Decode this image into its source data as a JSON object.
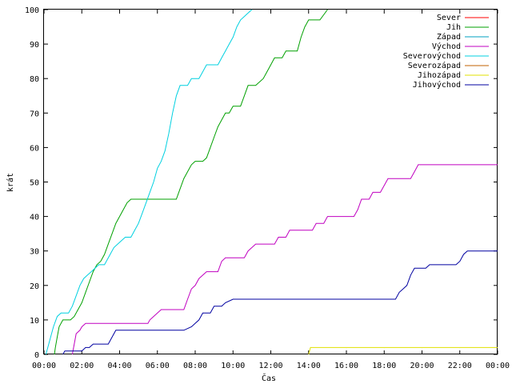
{
  "chart_data": {
    "type": "line",
    "xlabel": "Čas",
    "ylabel": "krát",
    "xlim": [
      0,
      24
    ],
    "ylim": [
      0,
      100
    ],
    "x_ticks": [
      "00:00",
      "02:00",
      "04:00",
      "06:00",
      "08:00",
      "10:00",
      "12:00",
      "14:00",
      "16:00",
      "18:00",
      "20:00",
      "22:00",
      "00:00"
    ],
    "y_ticks": [
      0,
      10,
      20,
      30,
      40,
      50,
      60,
      70,
      80,
      90,
      100
    ],
    "grid": false,
    "legend_position": "top-right",
    "series": [
      {
        "name": "Sever",
        "color": "#ff0000",
        "points": []
      },
      {
        "name": "Jih",
        "color": "#00a000",
        "points": [
          [
            0.55,
            0
          ],
          [
            0.6,
            2
          ],
          [
            0.7,
            5
          ],
          [
            0.8,
            8
          ],
          [
            1.0,
            10
          ],
          [
            1.2,
            10
          ],
          [
            1.4,
            10
          ],
          [
            1.6,
            11
          ],
          [
            1.8,
            13
          ],
          [
            2.0,
            15
          ],
          [
            2.2,
            18
          ],
          [
            2.4,
            21
          ],
          [
            2.6,
            24
          ],
          [
            2.8,
            26
          ],
          [
            3.0,
            27
          ],
          [
            3.2,
            29
          ],
          [
            3.4,
            32
          ],
          [
            3.6,
            35
          ],
          [
            3.8,
            38
          ],
          [
            4.0,
            40
          ],
          [
            4.2,
            42
          ],
          [
            4.4,
            44
          ],
          [
            4.6,
            45
          ],
          [
            5.0,
            45
          ],
          [
            6.0,
            45
          ],
          [
            7.0,
            45
          ],
          [
            7.2,
            48
          ],
          [
            7.4,
            51
          ],
          [
            7.6,
            53
          ],
          [
            7.8,
            55
          ],
          [
            8.0,
            56
          ],
          [
            8.4,
            56
          ],
          [
            8.6,
            57
          ],
          [
            8.8,
            60
          ],
          [
            9.0,
            63
          ],
          [
            9.2,
            66
          ],
          [
            9.4,
            68
          ],
          [
            9.6,
            70
          ],
          [
            9.8,
            70
          ],
          [
            10.0,
            72
          ],
          [
            10.4,
            72
          ],
          [
            10.6,
            75
          ],
          [
            10.8,
            78
          ],
          [
            11.2,
            78
          ],
          [
            11.6,
            80
          ],
          [
            11.8,
            82
          ],
          [
            12.0,
            84
          ],
          [
            12.2,
            86
          ],
          [
            12.6,
            86
          ],
          [
            12.8,
            88
          ],
          [
            13.4,
            88
          ],
          [
            13.6,
            92
          ],
          [
            13.8,
            95
          ],
          [
            14.0,
            97
          ],
          [
            14.6,
            97
          ],
          [
            15.0,
            100
          ]
        ]
      },
      {
        "name": "Západ",
        "color": "#00a0c0",
        "points": []
      },
      {
        "name": "Východ",
        "color": "#c000c0",
        "points": [
          [
            1.5,
            0
          ],
          [
            1.6,
            3
          ],
          [
            1.7,
            6
          ],
          [
            1.9,
            7
          ],
          [
            2.0,
            8
          ],
          [
            2.2,
            9
          ],
          [
            3.0,
            9
          ],
          [
            4.0,
            9
          ],
          [
            5.0,
            9
          ],
          [
            5.5,
            9
          ],
          [
            5.6,
            10
          ],
          [
            5.8,
            11
          ],
          [
            6.0,
            12
          ],
          [
            6.2,
            13
          ],
          [
            7.4,
            13
          ],
          [
            7.6,
            16
          ],
          [
            7.8,
            19
          ],
          [
            8.0,
            20
          ],
          [
            8.2,
            22
          ],
          [
            8.4,
            23
          ],
          [
            8.6,
            24
          ],
          [
            9.2,
            24
          ],
          [
            9.4,
            27
          ],
          [
            9.6,
            28
          ],
          [
            10.6,
            28
          ],
          [
            10.8,
            30
          ],
          [
            11.0,
            31
          ],
          [
            11.2,
            32
          ],
          [
            12.2,
            32
          ],
          [
            12.4,
            34
          ],
          [
            12.8,
            34
          ],
          [
            13.0,
            36
          ],
          [
            14.2,
            36
          ],
          [
            14.4,
            38
          ],
          [
            14.8,
            38
          ],
          [
            15.0,
            40
          ],
          [
            16.4,
            40
          ],
          [
            16.6,
            42
          ],
          [
            16.8,
            45
          ],
          [
            17.2,
            45
          ],
          [
            17.4,
            47
          ],
          [
            17.8,
            47
          ],
          [
            18.0,
            49
          ],
          [
            18.2,
            51
          ],
          [
            19.4,
            51
          ],
          [
            19.6,
            53
          ],
          [
            19.8,
            55
          ],
          [
            20.0,
            55
          ],
          [
            24.0,
            55
          ]
        ]
      },
      {
        "name": "Severovýchod",
        "color": "#00d0e0",
        "points": [
          [
            0.1,
            0
          ],
          [
            0.3,
            4
          ],
          [
            0.5,
            8
          ],
          [
            0.7,
            11
          ],
          [
            0.9,
            12
          ],
          [
            1.1,
            12
          ],
          [
            1.3,
            12
          ],
          [
            1.5,
            14
          ],
          [
            1.7,
            17
          ],
          [
            1.9,
            20
          ],
          [
            2.1,
            22
          ],
          [
            2.3,
            23
          ],
          [
            2.5,
            24
          ],
          [
            2.7,
            25
          ],
          [
            2.9,
            26
          ],
          [
            3.2,
            26
          ],
          [
            3.5,
            29
          ],
          [
            3.7,
            31
          ],
          [
            3.9,
            32
          ],
          [
            4.1,
            33
          ],
          [
            4.3,
            34
          ],
          [
            4.6,
            34
          ],
          [
            4.8,
            36
          ],
          [
            5.0,
            38
          ],
          [
            5.2,
            41
          ],
          [
            5.4,
            44
          ],
          [
            5.6,
            47
          ],
          [
            5.8,
            50
          ],
          [
            6.0,
            54
          ],
          [
            6.2,
            56
          ],
          [
            6.4,
            59
          ],
          [
            6.6,
            64
          ],
          [
            6.8,
            70
          ],
          [
            7.0,
            75
          ],
          [
            7.2,
            78
          ],
          [
            7.6,
            78
          ],
          [
            7.8,
            80
          ],
          [
            8.2,
            80
          ],
          [
            8.4,
            82
          ],
          [
            8.6,
            84
          ],
          [
            9.2,
            84
          ],
          [
            9.4,
            86
          ],
          [
            9.6,
            88
          ],
          [
            9.8,
            90
          ],
          [
            10.0,
            92
          ],
          [
            10.2,
            95
          ],
          [
            10.4,
            97
          ],
          [
            10.6,
            98
          ],
          [
            10.8,
            99
          ],
          [
            11.0,
            100
          ]
        ]
      },
      {
        "name": "Severozápad",
        "color": "#c06000",
        "points": []
      },
      {
        "name": "Jihozápad",
        "color": "#e0e000",
        "points": [
          [
            14.0,
            0
          ],
          [
            14.1,
            2
          ],
          [
            24.0,
            2
          ]
        ]
      },
      {
        "name": "Jihovýchod",
        "color": "#0000a0",
        "points": [
          [
            1.0,
            0
          ],
          [
            1.1,
            1
          ],
          [
            2.0,
            1
          ],
          [
            2.2,
            2
          ],
          [
            2.4,
            2
          ],
          [
            2.6,
            3
          ],
          [
            3.4,
            3
          ],
          [
            3.6,
            5
          ],
          [
            3.8,
            7
          ],
          [
            4.4,
            7
          ],
          [
            5.0,
            7
          ],
          [
            6.0,
            7
          ],
          [
            7.0,
            7
          ],
          [
            7.4,
            7
          ],
          [
            7.8,
            8
          ],
          [
            8.2,
            10
          ],
          [
            8.4,
            12
          ],
          [
            8.8,
            12
          ],
          [
            9.0,
            14
          ],
          [
            9.4,
            14
          ],
          [
            9.6,
            15
          ],
          [
            10.0,
            16
          ],
          [
            11.0,
            16
          ],
          [
            12.0,
            16
          ],
          [
            13.0,
            16
          ],
          [
            14.0,
            16
          ],
          [
            15.0,
            16
          ],
          [
            16.0,
            16
          ],
          [
            17.0,
            16
          ],
          [
            18.0,
            16
          ],
          [
            18.6,
            16
          ],
          [
            18.8,
            18
          ],
          [
            19.0,
            19
          ],
          [
            19.2,
            20
          ],
          [
            19.4,
            23
          ],
          [
            19.6,
            25
          ],
          [
            20.2,
            25
          ],
          [
            20.4,
            26
          ],
          [
            21.8,
            26
          ],
          [
            22.0,
            27
          ],
          [
            22.2,
            29
          ],
          [
            22.4,
            30
          ],
          [
            24.0,
            30
          ]
        ]
      }
    ]
  }
}
